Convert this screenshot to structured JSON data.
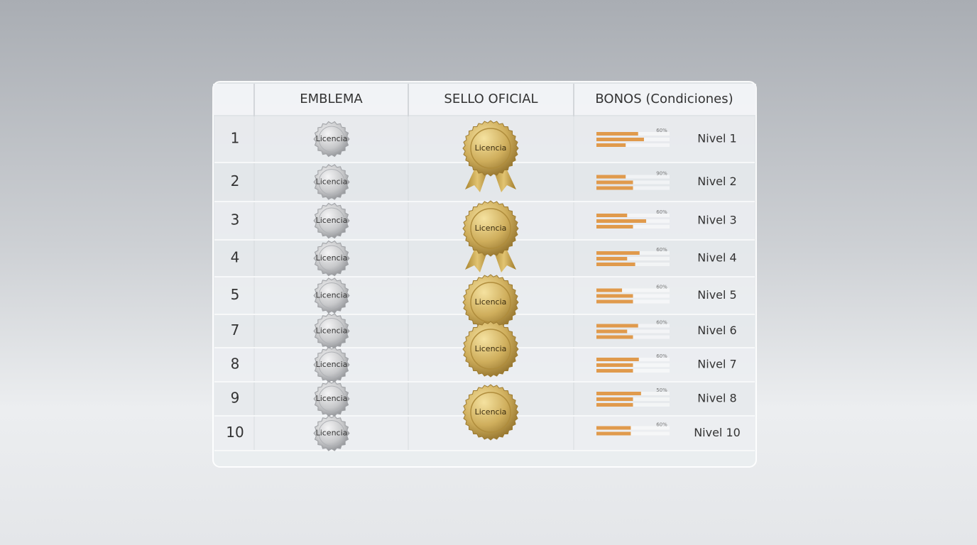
{
  "table": {
    "headers": [
      "EMBLEMA",
      "SELLO OFICIAL",
      "BONOS (Condiciones)"
    ],
    "rows": [
      {
        "number": "1",
        "emblem": "Licencia",
        "bars": [
          57,
          65,
          40
        ],
        "percent": "60%",
        "level": "Nivel 1"
      },
      {
        "number": "2",
        "emblem": "Licencia",
        "bars": [
          40,
          50,
          50
        ],
        "percent": "90%",
        "level": "Nivel 2"
      },
      {
        "number": "3",
        "emblem": "Licencia",
        "bars": [
          42,
          68,
          50
        ],
        "percent": "60%",
        "level": "Nivel 3"
      },
      {
        "number": "4",
        "emblem": "Licencia",
        "bars": [
          59,
          42,
          53
        ],
        "percent": "60%",
        "level": "Nivel 4"
      },
      {
        "number": "5",
        "emblem": "Licencia",
        "bars": [
          35,
          50,
          50
        ],
        "percent": "60%",
        "level": "Nivel 5"
      },
      {
        "number": "7",
        "emblem": "Licencia",
        "bars": [
          57,
          42,
          50
        ],
        "percent": "60%",
        "level": "Nivel 6"
      },
      {
        "number": "8",
        "emblem": "Licencia",
        "bars": [
          58,
          50,
          50
        ],
        "percent": "60%",
        "level": "Nivel 7"
      },
      {
        "number": "9",
        "emblem": "Licencia",
        "bars": [
          61,
          50,
          50
        ],
        "percent": "50%",
        "level": "Nivel 8"
      },
      {
        "number": "10",
        "emblem": "Licencia",
        "bars": [
          47,
          47
        ],
        "percent": "60%",
        "level": "Nivel 10"
      }
    ],
    "seals": [
      "Licencia",
      "Licencia",
      "Licencia",
      "Licencia",
      "Licencia"
    ]
  }
}
